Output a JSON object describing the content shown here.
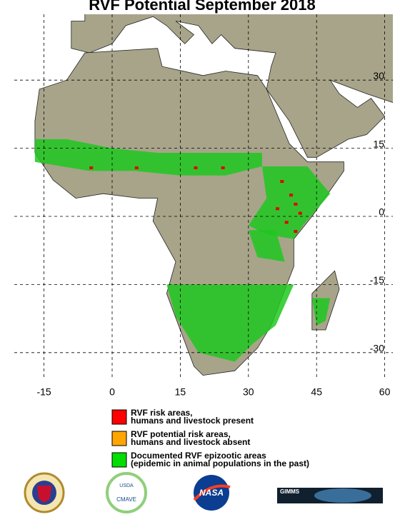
{
  "header": {
    "title": "RVF Potential September 2018"
  },
  "map": {
    "lon_ticks": [
      -15,
      0,
      15,
      30,
      45,
      60
    ],
    "lat_ticks": [
      30,
      15,
      0,
      -15,
      -30
    ]
  },
  "legend": [
    {
      "color": "#ff0000",
      "lines": [
        "RVF risk areas,",
        "humans and livestock present"
      ]
    },
    {
      "color": "#ffa500",
      "lines": [
        "RVF potential risk areas,",
        "humans and livestock absent"
      ]
    },
    {
      "color": "#00dd00",
      "lines": [
        "Documented RVF epizootic areas",
        "(epidemic in animal populations in the past)"
      ]
    }
  ],
  "logos": {
    "usda": "USDA",
    "cmave": "CMAVE",
    "nasa": "NASA",
    "gimms": "GIMMS"
  }
}
